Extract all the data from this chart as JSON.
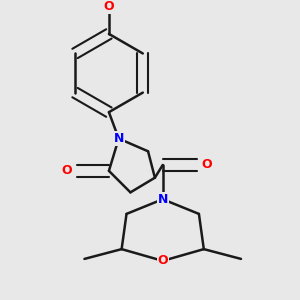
{
  "background_color": "#e8e8e8",
  "bond_color": "#1a1a1a",
  "atom_colors": {
    "N": "#0000ff",
    "O": "#ff0000",
    "C": "#1a1a1a"
  },
  "figsize": [
    3.0,
    3.0
  ],
  "dpi": 100
}
